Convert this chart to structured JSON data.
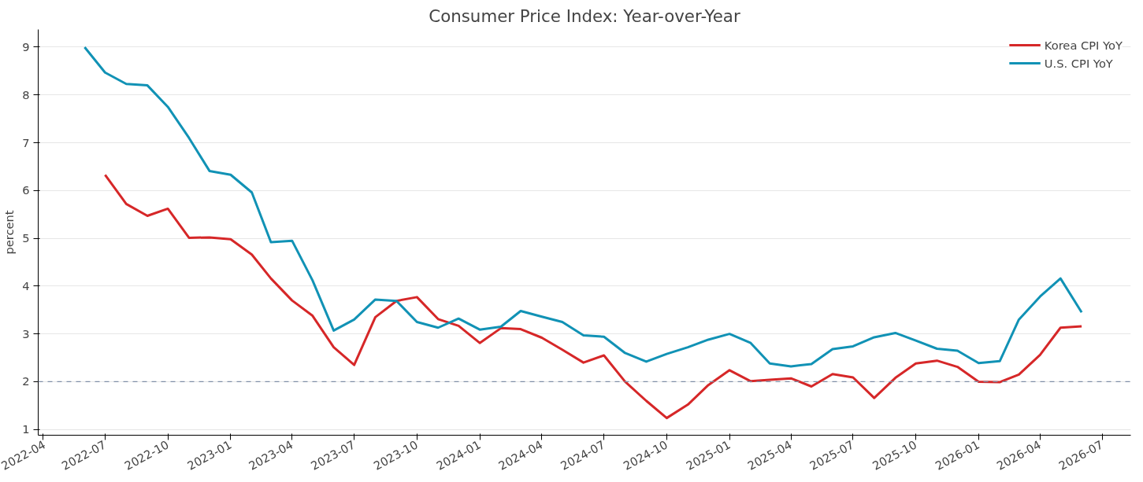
{
  "chart_data": {
    "type": "line",
    "title": "Consumer Price Index: Year-over-Year",
    "ylabel": "percent",
    "x": [
      "2022-06",
      "2022-07",
      "2022-08",
      "2022-09",
      "2022-10",
      "2022-11",
      "2022-12",
      "2023-01",
      "2023-02",
      "2023-03",
      "2023-04",
      "2023-05",
      "2023-06",
      "2023-07",
      "2023-08",
      "2023-09",
      "2023-10",
      "2023-11",
      "2023-12",
      "2024-01",
      "2024-02",
      "2024-03",
      "2024-04",
      "2024-05",
      "2024-06",
      "2024-07",
      "2024-08",
      "2024-09",
      "2024-10",
      "2024-11",
      "2024-12",
      "2025-01",
      "2025-02",
      "2025-03",
      "2025-04",
      "2025-05",
      "2025-06",
      "2025-07",
      "2025-08",
      "2025-09",
      "2025-10",
      "2025-11",
      "2025-12",
      "2026-01",
      "2026-02",
      "2026-03",
      "2026-04",
      "2026-05",
      "2026-06"
    ],
    "series": [
      {
        "name": "Korea CPI YoY",
        "color": "#d62728",
        "values": [
          null,
          6.33,
          5.72,
          5.47,
          5.62,
          5.01,
          5.02,
          4.98,
          4.66,
          4.16,
          3.7,
          3.38,
          2.72,
          2.35,
          3.35,
          3.69,
          3.77,
          3.31,
          3.17,
          2.81,
          3.12,
          3.1,
          2.92,
          2.67,
          2.4,
          2.55,
          2.0,
          1.6,
          1.24,
          1.52,
          1.93,
          2.24,
          2.01,
          2.04,
          2.07,
          1.9,
          2.16,
          2.09,
          1.66,
          2.08,
          2.38,
          2.44,
          2.31,
          2.0,
          1.99,
          2.15,
          2.56,
          3.13,
          3.16
        ]
      },
      {
        "name": "U.S. CPI YoY",
        "color": "#1192b5",
        "values": [
          9.0,
          8.47,
          8.23,
          8.2,
          7.75,
          7.1,
          6.41,
          6.33,
          5.96,
          4.92,
          4.95,
          4.12,
          3.07,
          3.3,
          3.72,
          3.69,
          3.25,
          3.13,
          3.32,
          3.09,
          3.15,
          3.48,
          3.36,
          3.25,
          2.97,
          2.94,
          2.6,
          2.42,
          2.58,
          2.72,
          2.88,
          3.0,
          2.81,
          2.38,
          2.32,
          2.37,
          2.68,
          2.74,
          2.93,
          3.02,
          2.86,
          2.69,
          2.65,
          2.39,
          2.43,
          3.3,
          3.78,
          4.16,
          3.45
        ]
      }
    ],
    "xlim": [
      "2022-03-25",
      "2026-08-12"
    ],
    "xticks": [
      "2022-04",
      "2022-07",
      "2022-10",
      "2023-01",
      "2023-04",
      "2023-07",
      "2023-10",
      "2024-01",
      "2024-04",
      "2024-07",
      "2024-10",
      "2025-01",
      "2025-04",
      "2025-07",
      "2025-10",
      "2026-01",
      "2026-04",
      "2026-07"
    ],
    "ylim": [
      0.88,
      9.37
    ],
    "yticks": [
      1,
      2,
      3,
      4,
      5,
      6,
      7,
      8,
      9
    ],
    "grid": "y",
    "legend": "top right",
    "line_style": "solid",
    "marker": "none",
    "ref_lines": [
      {
        "axis": "y",
        "value": 2,
        "label": null,
        "color": "#7f8fa6",
        "line_style": "dashed"
      }
    ]
  }
}
